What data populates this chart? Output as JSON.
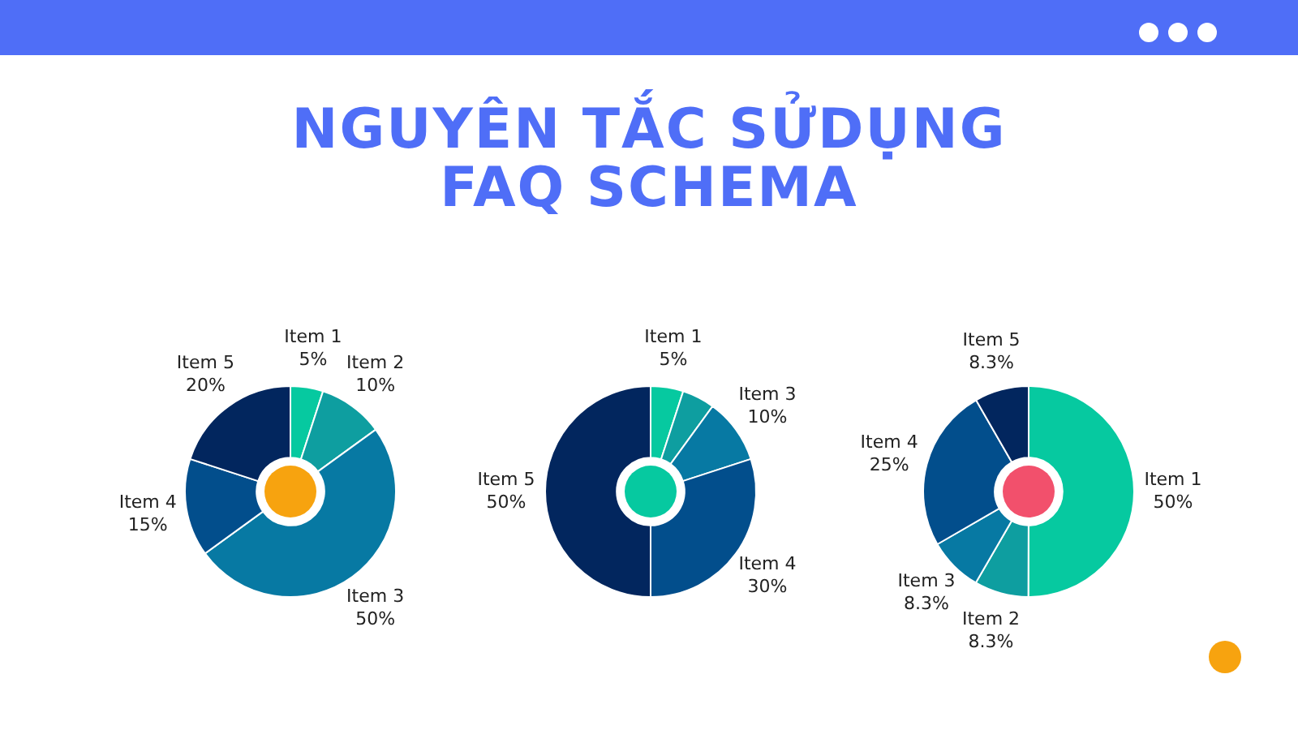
{
  "chart_data": [
    {
      "type": "donut",
      "title": "NGUYÊN TẮC SỬDỤNG FAQ SCHEMA",
      "categories": [
        "Item 1",
        "Item 2",
        "Item 3",
        "Item 4",
        "Item 5"
      ],
      "values": [
        5,
        10,
        50,
        15,
        20
      ],
      "value_labels": [
        "5%",
        "10%",
        "50%",
        "15%",
        "20%"
      ],
      "colors": [
        "#06c9a0",
        "#0e9ea0",
        "#0779a3",
        "#024e8c",
        "#02265e"
      ]
    },
    {
      "type": "donut",
      "categories": [
        "Item 1",
        null,
        "Item 3",
        "Item 4",
        "Item 5"
      ],
      "values": [
        5,
        5,
        10,
        30,
        50
      ],
      "value_labels": [
        "5%",
        null,
        "10%",
        "30%",
        "50%"
      ],
      "colors": [
        "#06c9a0",
        "#0e9ea0",
        "#0779a3",
        "#024e8c",
        "#02265e"
      ]
    },
    {
      "type": "donut",
      "categories": [
        "Item 1",
        "Item 2",
        "Item 3",
        "Item 4",
        "Item 5"
      ],
      "values": [
        50,
        8.3,
        8.3,
        25,
        8.3
      ],
      "value_labels": [
        "50%",
        "8.3%",
        "8.3%",
        "25%",
        "8.3%"
      ],
      "colors": [
        "#06c9a0",
        "#0e9ea0",
        "#0779a3",
        "#024e8c",
        "#02265e"
      ]
    }
  ]
}
